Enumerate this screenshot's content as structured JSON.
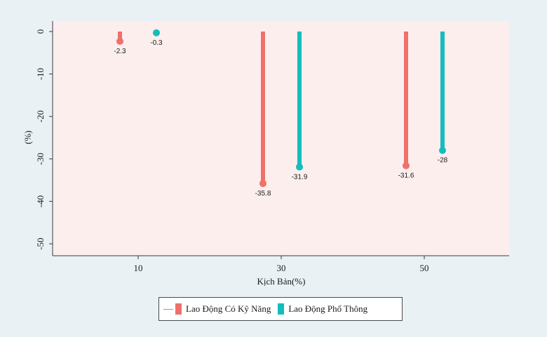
{
  "colors": {
    "background": "#e9f1f4",
    "plot_background": "#fdeeee",
    "skilled": "#f0706b",
    "unskilled": "#16bcbc"
  },
  "legend": {
    "items": [
      {
        "label": "Lao Động Có Kỹ Năng",
        "color": "#f0706b"
      },
      {
        "label": "Lao Động Phổ Thông",
        "color": "#16bcbc"
      }
    ]
  },
  "chart_data": {
    "type": "bar",
    "title": "",
    "xlabel": "Kịch Bản(%)",
    "ylabel": "(%)",
    "categories": [
      "10",
      "30",
      "50"
    ],
    "series": [
      {
        "name": "Lao Động Có Kỹ Năng",
        "color": "#f0706b",
        "values": [
          -2.3,
          -35.8,
          -31.6
        ],
        "labels": [
          "-2.3",
          "-35.8",
          "-31.6"
        ]
      },
      {
        "name": "Lao Động Phổ Thông",
        "color": "#16bcbc",
        "values": [
          -0.3,
          -31.9,
          -28
        ],
        "labels": [
          "-0.3",
          "-31.9",
          "-28"
        ]
      }
    ],
    "ylim": [
      -50,
      0
    ],
    "yticks": [
      0,
      -10,
      -20,
      -30,
      -40,
      -50
    ],
    "ytick_labels": [
      "0",
      "-10",
      "-20",
      "-30",
      "-40",
      "-50"
    ],
    "grid": false,
    "legend_position": "bottom"
  }
}
